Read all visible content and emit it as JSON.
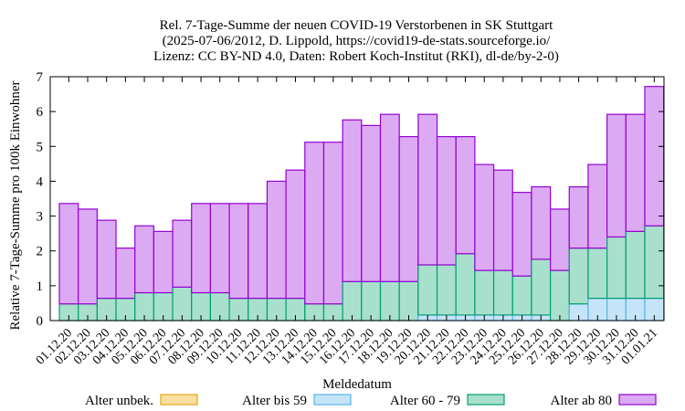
{
  "chart_data": {
    "type": "bar",
    "stacked": true,
    "title": [
      "Rel. 7-Tage-Summe der neuen COVID-19 Verstorbenen in SK Stuttgart",
      "(2025-07-06/2012, D. Lippold, https://covid19-de-stats.sourceforge.io/",
      "Lizenz: CC BY-ND 4.0, Daten: Robert Koch-Institut (RKI), dl-de/by-2-0)"
    ],
    "xlabel": "Meldedatum",
    "ylabel": "Relative 7-Tage-Summe pro 100k Einwohner",
    "ylim": [
      0,
      7
    ],
    "yticks": [
      "0",
      "1",
      "2",
      "3",
      "4",
      "5",
      "6",
      "7"
    ],
    "grid": false,
    "legend_position": "bottom",
    "categories": [
      "01.12.20",
      "02.12.20",
      "03.12.20",
      "04.12.20",
      "05.12.20",
      "06.12.20",
      "07.12.20",
      "08.12.20",
      "09.12.20",
      "10.12.20",
      "11.12.20",
      "12.12.20",
      "13.12.20",
      "14.12.20",
      "15.12.20",
      "16.12.20",
      "17.12.20",
      "18.12.20",
      "19.12.20",
      "20.12.20",
      "21.12.20",
      "22.12.20",
      "23.12.20",
      "24.12.20",
      "25.12.20",
      "26.12.20",
      "27.12.20",
      "28.12.20",
      "29.12.20",
      "30.12.20",
      "31.12.20",
      "01.01.21"
    ],
    "series": [
      {
        "name": "Alter unbek.",
        "fill": "#f9df9f",
        "stroke": "#e6a817",
        "values": [
          0,
          0,
          0,
          0,
          0,
          0,
          0,
          0,
          0,
          0,
          0,
          0,
          0,
          0,
          0,
          0,
          0,
          0,
          0,
          0,
          0,
          0,
          0,
          0,
          0,
          0,
          0,
          0,
          0,
          0,
          0,
          0
        ]
      },
      {
        "name": "Alter bis 59",
        "fill": "#c6e4f7",
        "stroke": "#56b4e9",
        "values": [
          0,
          0,
          0,
          0,
          0,
          0,
          0,
          0,
          0,
          0,
          0,
          0,
          0,
          0,
          0,
          0,
          0,
          0,
          0,
          0.16,
          0.16,
          0.16,
          0.16,
          0.16,
          0.16,
          0.16,
          0,
          0.48,
          0.64,
          0.64,
          0.64,
          0.64
        ]
      },
      {
        "name": "Alter 60 - 79",
        "fill": "#a9e0cd",
        "stroke": "#009e73",
        "values": [
          0.48,
          0.48,
          0.64,
          0.64,
          0.8,
          0.8,
          0.96,
          0.8,
          0.8,
          0.64,
          0.64,
          0.64,
          0.64,
          0.48,
          0.48,
          1.12,
          1.12,
          1.12,
          1.12,
          1.44,
          1.44,
          1.76,
          1.28,
          1.28,
          1.12,
          1.6,
          1.44,
          1.6,
          1.44,
          1.76,
          1.92,
          2.08
        ]
      },
      {
        "name": "Alter ab 80",
        "fill": "#dcaaf3",
        "stroke": "#9400d3",
        "values": [
          2.88,
          2.72,
          2.24,
          1.44,
          1.92,
          1.76,
          1.92,
          2.56,
          2.56,
          2.72,
          2.72,
          3.36,
          3.68,
          4.64,
          4.64,
          4.64,
          4.48,
          4.8,
          4.16,
          4.32,
          3.68,
          3.36,
          3.04,
          2.88,
          2.4,
          2.08,
          1.76,
          1.76,
          2.4,
          3.52,
          3.36,
          4.0
        ]
      }
    ]
  }
}
